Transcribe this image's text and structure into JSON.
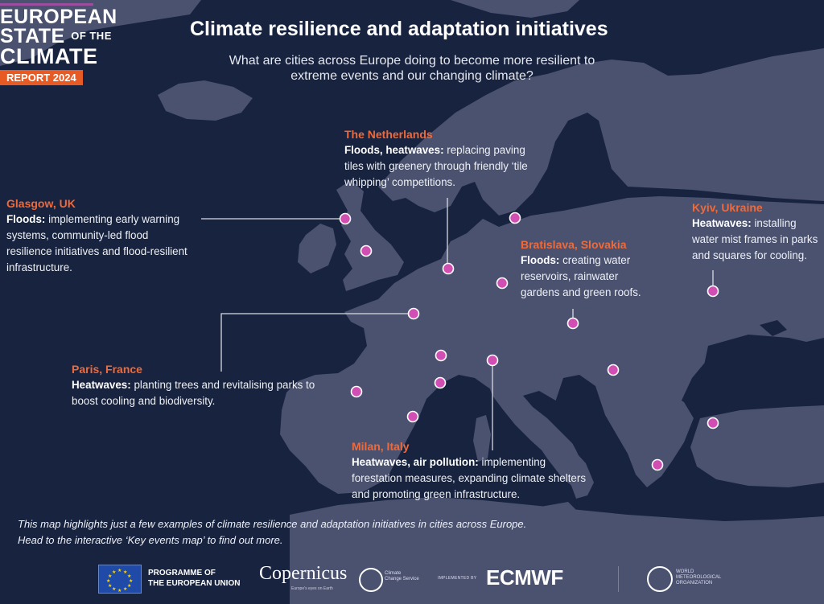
{
  "logo": {
    "line1": "EUROPEAN",
    "line2_main": "STATE",
    "line2_small": "OF THE",
    "line3": "CLIMATE",
    "badge": "REPORT 2024"
  },
  "title": "Climate resilience and adaptation initiatives",
  "subtitle": "What are cities across Europe doing to become more resilient to extreme events and our changing climate?",
  "cities": [
    {
      "name": "The Netherlands",
      "hazard": "Floods, heatwaves:",
      "text": "replacing paving tiles with greenery through friendly ‘tile whipping’ competitions."
    },
    {
      "name": "Glasgow, UK",
      "hazard": "Floods:",
      "text": "implementing early warning systems, community-led flood resilience initiatives and flood-resilient infrastructure."
    },
    {
      "name": "Bratislava, Slovakia",
      "hazard": "Floods:",
      "text": "creating water reservoirs, rainwater gardens and green roofs."
    },
    {
      "name": "Kyiv, Ukraine",
      "hazard": "Heatwaves:",
      "text": "installing water mist frames in parks and squares for cooling."
    },
    {
      "name": "Paris, France",
      "hazard": "Heatwaves:",
      "text": "planting trees and revitalising parks to boost cooling and biodiversity."
    },
    {
      "name": "Milan, Italy",
      "hazard": "Heatwaves, air pollution:",
      "text": "implementing forestation measures, expanding climate shelters and promoting green infrastructure."
    }
  ],
  "note": {
    "line1": "This map highlights just a few examples of climate resilience and adaptation initiatives in cities across Europe.",
    "line2": "Head to the interactive ‘Key events map’ to find out more."
  },
  "footer": {
    "programme_line1": "PROGRAMME OF",
    "programme_line2": "THE EUROPEAN UNION",
    "copernicus": "Copernicus",
    "copernicus_sub": "Europe's eyes on Earth",
    "ccs_line1": "Climate",
    "ccs_line2": "Change Service",
    "implemented": "IMPLEMENTED BY",
    "ecmwf": "ECMWF",
    "wmo_line1": "WORLD",
    "wmo_line2": "METEOROLOGICAL",
    "wmo_line3": "ORGANIZATION"
  },
  "colors": {
    "sea": "#17233f",
    "land": "#4a5270",
    "marker": "#d14fb3",
    "accent": "#ef6a3a",
    "badge": "#e85a24"
  }
}
